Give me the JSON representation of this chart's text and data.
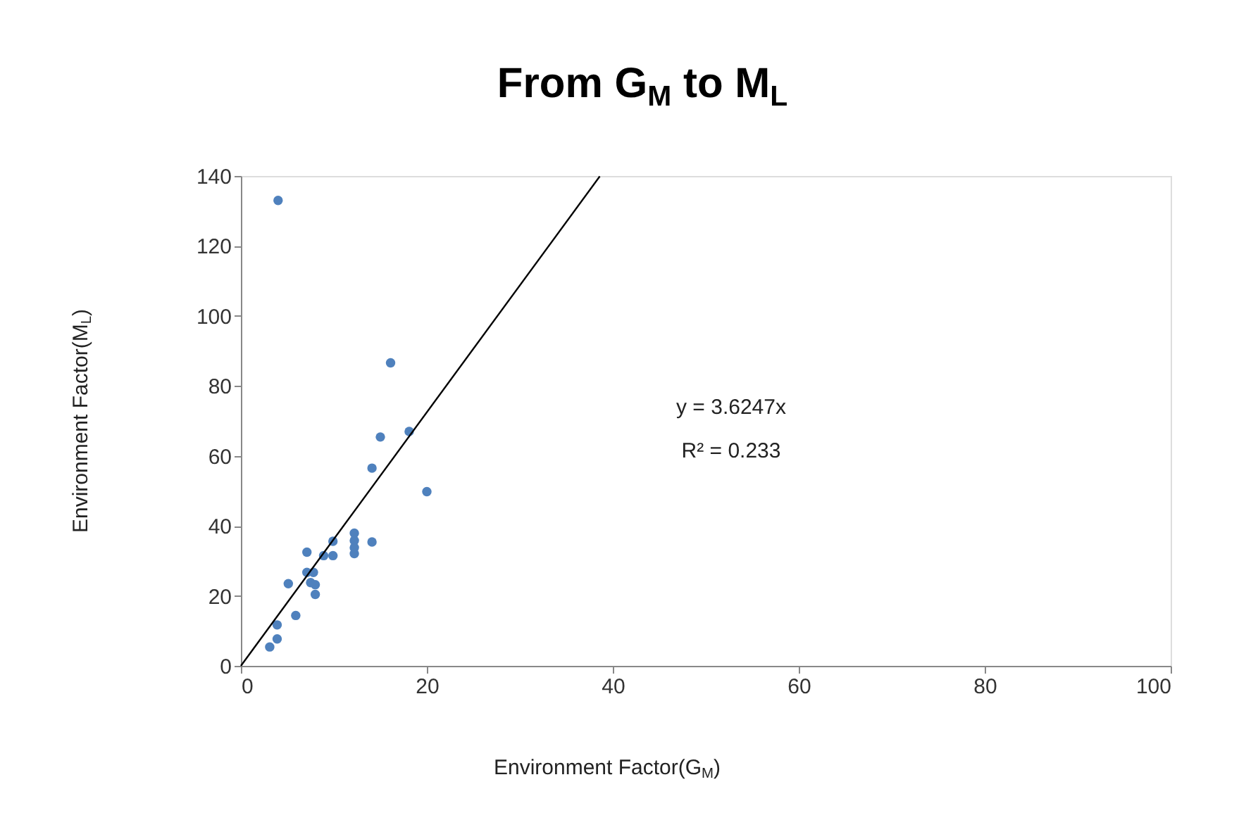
{
  "chart_data": {
    "type": "scatter",
    "title": "From G$_{M}$ to M$_{L}$",
    "xlabel": "Environment Factor(G$_{M}$)",
    "ylabel": "Environment Factor(M$_{L}$)",
    "series": [
      {
        "marker": "circle",
        "color": "#4f81bd",
        "x": [
          4,
          16.1,
          18.1,
          15.0,
          14.1,
          20,
          14.1,
          12.2,
          12.2,
          12.2,
          12.2,
          9.9,
          9.9,
          8.9,
          7.1,
          7.1,
          7.8,
          7.5,
          8.0,
          8.0,
          5.1,
          5.9,
          3.9,
          3.9,
          3.1
        ],
        "values": [
          133,
          86.6,
          67,
          65.4,
          56.5,
          49.8,
          35.4,
          37.9,
          35.8,
          33.8,
          32.1,
          35.6,
          31.5,
          31.5,
          32.5,
          26.7,
          26.7,
          23.8,
          23.2,
          20.4,
          23.5,
          14.4,
          11.7,
          7.7,
          5.4
        ]
      },
      {
        "type": "line",
        "color": "#000000",
        "x": [
          0,
          38.6
        ],
        "values": [
          0,
          139.9
        ]
      }
    ],
    "annotations": [
      "y = 3.6247x",
      "R² = 0.233"
    ],
    "xlim": [
      0,
      100
    ],
    "xticks": [
      0,
      20,
      40,
      60,
      80,
      100
    ],
    "ylim": [
      0,
      140
    ],
    "yticks": [
      0,
      20,
      40,
      60,
      80,
      100,
      120,
      140
    ],
    "grid": false
  }
}
